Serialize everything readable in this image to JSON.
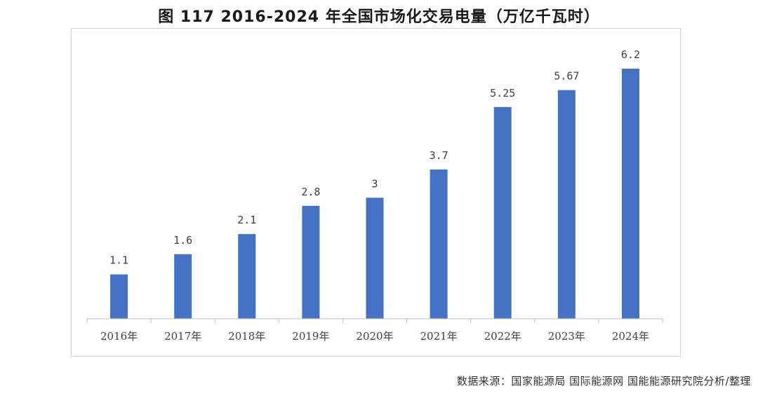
{
  "header": {
    "title": "图 117 2016-2024 年全国市场化交易电量（万亿千瓦时）"
  },
  "footer": {
    "source": "数据来源：国家能源局 国际能源网 国能能源研究院分析/整理"
  },
  "colors": {
    "bar": "#4472C4",
    "axis": "#bfbfbf",
    "label": "#404040"
  },
  "chart_data": {
    "type": "bar",
    "categories": [
      "2016年",
      "2017年",
      "2018年",
      "2019年",
      "2020年",
      "2021年",
      "2022年",
      "2023年",
      "2024年"
    ],
    "values": [
      1.1,
      1.6,
      2.1,
      2.8,
      3,
      3.7,
      5.25,
      5.67,
      6.2
    ],
    "value_labels": [
      "1.1",
      "1.6",
      "2.1",
      "2.8",
      "3",
      "3.7",
      "5.25",
      "5.67",
      "6.2"
    ],
    "title": "图 117 2016-2024 年全国市场化交易电量（万亿千瓦时）",
    "xlabel": "",
    "ylabel": "",
    "ylim": [
      0,
      7
    ],
    "grid": false,
    "legend": "none",
    "show_y_axis": false
  }
}
